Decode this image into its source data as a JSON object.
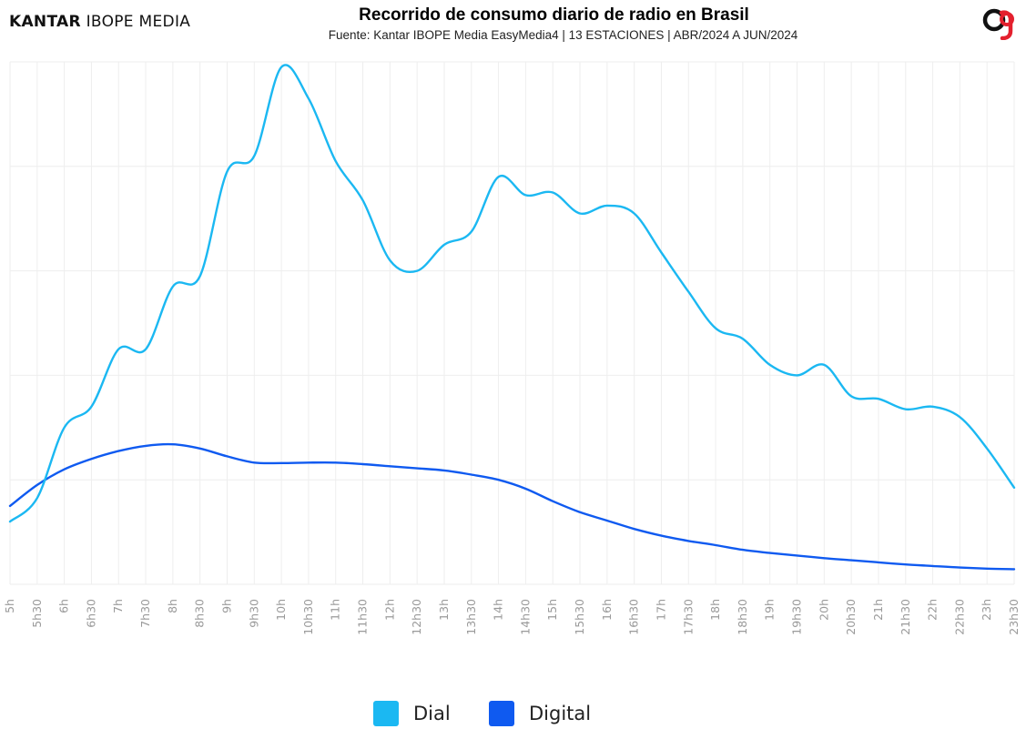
{
  "header": {
    "brand_bold": "KANTAR",
    "brand_rest": " IBOPE MEDIA",
    "logo_icon": "kantar-logo-icon"
  },
  "chart_data": {
    "type": "line",
    "title": "Recorrido de consumo diario de radio en Brasil",
    "subtitle": "Fuente: Kantar IBOPE Media EasyMedia4 | 13 ESTACIONES | ABR/2024 A JUN/2024",
    "xlabel": "",
    "ylabel": "",
    "ylim": [
      0,
      100
    ],
    "grid": true,
    "legend_position": "bottom-center",
    "categories": [
      "5h",
      "5h30",
      "6h",
      "6h30",
      "7h",
      "7h30",
      "8h",
      "8h30",
      "9h",
      "9h30",
      "10h",
      "10h30",
      "11h",
      "11h30",
      "12h",
      "12h30",
      "13h",
      "13h30",
      "14h",
      "14h30",
      "15h",
      "15h30",
      "16h",
      "16h30",
      "17h",
      "17h30",
      "18h",
      "18h30",
      "19h",
      "19h30",
      "20h",
      "20h30",
      "21h",
      "21h30",
      "22h",
      "22h30",
      "23h",
      "23h30"
    ],
    "series": [
      {
        "name": "Dial",
        "color": "#1BB8F2",
        "values": [
          12.0,
          16.5,
          30.0,
          34.0,
          45.0,
          45.0,
          57.0,
          59.0,
          79.0,
          82.0,
          99.0,
          93.0,
          81.0,
          73.5,
          62.0,
          60.0,
          65.0,
          67.5,
          78.0,
          74.5,
          75.0,
          71.0,
          72.5,
          71.0,
          63.5,
          56.0,
          49.0,
          47.0,
          42.0,
          40.0,
          42.0,
          36.0,
          35.5,
          33.5,
          34.0,
          32.0,
          26.0,
          18.5
        ]
      },
      {
        "name": "Digital",
        "color": "#0F5AF0",
        "values": [
          15.0,
          19.0,
          22.0,
          24.0,
          25.5,
          26.5,
          26.8,
          26.0,
          24.5,
          23.3,
          23.2,
          23.3,
          23.3,
          23.0,
          22.6,
          22.2,
          21.8,
          21.0,
          20.0,
          18.3,
          15.9,
          13.8,
          12.2,
          10.6,
          9.3,
          8.3,
          7.5,
          6.6,
          6.0,
          5.5,
          5.0,
          4.6,
          4.2,
          3.8,
          3.5,
          3.2,
          3.0,
          2.9
        ]
      }
    ]
  }
}
